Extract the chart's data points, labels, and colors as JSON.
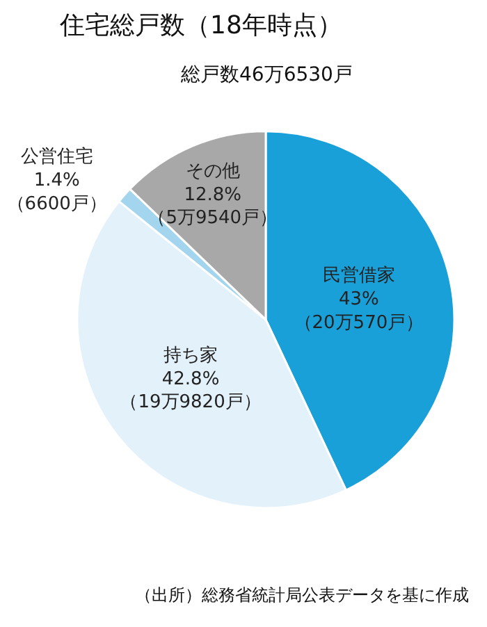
{
  "chart_data": {
    "type": "pie",
    "title": "住宅総戸数（18年時点）",
    "subtitle": "総戸数46万6530戸",
    "categories": [
      "民営借家",
      "持ち家",
      "公営住宅",
      "その他"
    ],
    "values": [
      43,
      42.8,
      1.4,
      12.8
    ],
    "colors": [
      "#1aa0d8",
      "#e3f1fa",
      "#a3d5ef",
      "#a8a8a8"
    ],
    "value_labels": [
      "43%\n（20万570戸）",
      "42.8%\n（19万9820戸）",
      "1.4%\n（6600戸）",
      "12.8%\n（5万9540戸）"
    ],
    "annotations": [
      "（出所）総務省統計局公表データを基に作成"
    ]
  }
}
